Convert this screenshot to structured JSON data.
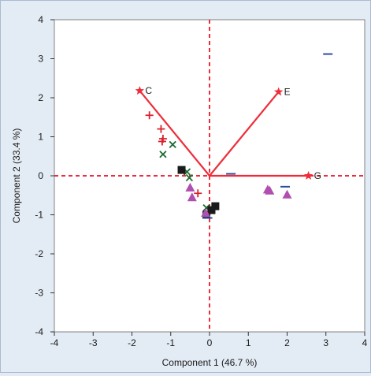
{
  "chart_data": {
    "type": "scatter",
    "xlabel": "Component 1  (46.7 %)",
    "ylabel": "Component 2  (33.4 %)",
    "xlim": [
      -4,
      4
    ],
    "ylim": [
      -4,
      4
    ],
    "xticks": [
      -4,
      -3,
      -2,
      -1,
      0,
      1,
      2,
      3,
      4
    ],
    "yticks": [
      -4,
      -3,
      -2,
      -1,
      0,
      1,
      2,
      3,
      4
    ],
    "grid": false,
    "reference_lines": {
      "x": 0,
      "y": 0,
      "style": "dashed",
      "color": "#ee2d3a"
    },
    "loading_vectors": [
      {
        "label": "C",
        "x": -1.8,
        "y": 2.18
      },
      {
        "label": "E",
        "x": 1.78,
        "y": 2.15
      },
      {
        "label": "G",
        "x": 2.55,
        "y": 0.0
      }
    ],
    "series": [
      {
        "marker": "plus",
        "color": "#d8222e",
        "points": [
          [
            -1.55,
            1.55
          ],
          [
            -1.25,
            1.2
          ],
          [
            -1.2,
            0.95
          ],
          [
            -1.22,
            0.88
          ],
          [
            -0.3,
            -0.45
          ]
        ]
      },
      {
        "marker": "cross",
        "color": "#1a6b2f",
        "points": [
          [
            -1.2,
            0.55
          ],
          [
            -0.95,
            0.8
          ],
          [
            -0.58,
            0.1
          ],
          [
            -0.52,
            -0.05
          ],
          [
            -0.08,
            -0.82
          ]
        ]
      },
      {
        "marker": "square",
        "color": "#1a1a1a",
        "points": [
          [
            -0.72,
            0.15
          ],
          [
            -0.08,
            -1.0
          ],
          [
            0.05,
            -0.88
          ],
          [
            0.15,
            -0.78
          ]
        ]
      },
      {
        "marker": "triangle",
        "color": "#b04fb0",
        "points": [
          [
            -0.5,
            -0.3
          ],
          [
            -0.45,
            -0.55
          ],
          [
            1.5,
            -0.35
          ],
          [
            1.55,
            -0.38
          ],
          [
            2.0,
            -0.48
          ],
          [
            -0.1,
            -0.95
          ]
        ]
      },
      {
        "marker": "dash",
        "color": "#2a4fa0",
        "points": [
          [
            3.05,
            3.12
          ],
          [
            0.55,
            0.05
          ],
          [
            1.95,
            -0.28
          ],
          [
            -0.05,
            -1.08
          ]
        ]
      }
    ]
  }
}
